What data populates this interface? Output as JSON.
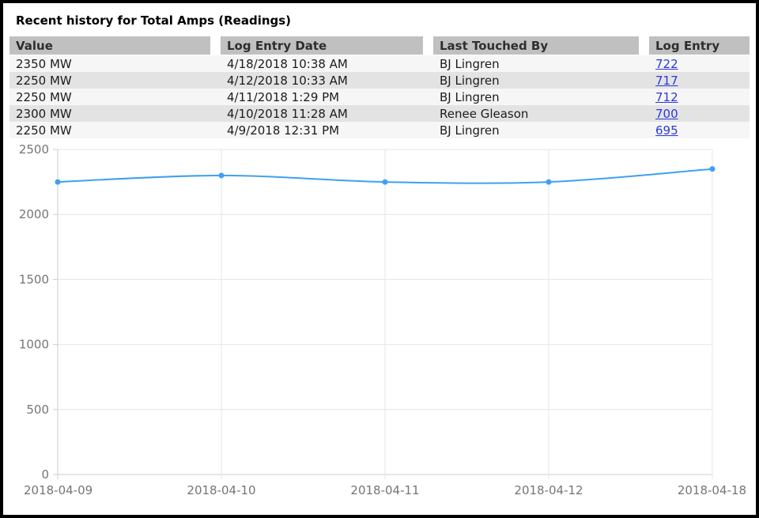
{
  "title": "Recent history for Total Amps (Readings)",
  "table": {
    "columns": [
      "Value",
      "Log Entry Date",
      "Last Touched By",
      "Log Entry"
    ],
    "rows": [
      {
        "value": "2350 MW",
        "date": "4/18/2018 10:38 AM",
        "touched_by": "BJ Lingren",
        "log_entry": "722"
      },
      {
        "value": "2250 MW",
        "date": "4/12/2018 10:33 AM",
        "touched_by": "BJ Lingren",
        "log_entry": "717"
      },
      {
        "value": "2250 MW",
        "date": "4/11/2018 1:29 PM",
        "touched_by": "BJ Lingren",
        "log_entry": "712"
      },
      {
        "value": "2300 MW",
        "date": "4/10/2018 11:28 AM",
        "touched_by": "Renee Gleason",
        "log_entry": "700"
      },
      {
        "value": "2250 MW",
        "date": "4/9/2018 12:31 PM",
        "touched_by": "BJ Lingren",
        "log_entry": "695"
      }
    ]
  },
  "chart_data": {
    "type": "line",
    "title": "",
    "x": [
      "2018-04-09",
      "2018-04-10",
      "2018-04-11",
      "2018-04-12",
      "2018-04-18"
    ],
    "series": [
      {
        "name": "Total Amps (Readings)",
        "values": [
          2250,
          2300,
          2250,
          2250,
          2350
        ]
      }
    ],
    "xlabel": "",
    "ylabel": "",
    "ylim": [
      0,
      2500
    ],
    "yticks": [
      0,
      500,
      1000,
      1500,
      2000,
      2500
    ],
    "grid": "on",
    "legend": "none",
    "smooth": true,
    "line_color": "#3fa0f2"
  },
  "colors": {
    "header_bg": "#c0c0c0",
    "row_odd": "#f6f6f6",
    "row_even": "#e3e3e3",
    "link": "#2b38d9",
    "line": "#3fa0f2",
    "axis_label": "#757575"
  }
}
